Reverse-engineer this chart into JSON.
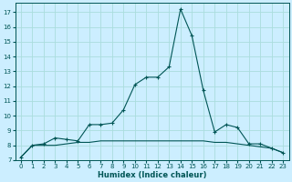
{
  "xlabel": "Humidex (Indice chaleur)",
  "background_color": "#cceeff",
  "grid_color": "#aadddd",
  "line_color": "#005555",
  "xlim": [
    -0.5,
    23.5
  ],
  "ylim": [
    7,
    17.6
  ],
  "yticks": [
    7,
    8,
    9,
    10,
    11,
    12,
    13,
    14,
    15,
    16,
    17
  ],
  "xticks": [
    0,
    1,
    2,
    3,
    4,
    5,
    6,
    7,
    8,
    9,
    10,
    11,
    12,
    13,
    14,
    15,
    16,
    17,
    18,
    19,
    20,
    21,
    22,
    23
  ],
  "line1_x": [
    0,
    1,
    2,
    3,
    4,
    5,
    6,
    7,
    8,
    9,
    10,
    11,
    12,
    13,
    14,
    15,
    16,
    17,
    18,
    19,
    20,
    21,
    22,
    23
  ],
  "line1_y": [
    7.2,
    8.0,
    8.1,
    8.5,
    8.4,
    8.3,
    9.4,
    9.4,
    9.5,
    10.4,
    12.1,
    12.6,
    12.6,
    13.3,
    17.2,
    15.4,
    11.7,
    8.9,
    9.4,
    9.2,
    8.1,
    8.1,
    7.8,
    7.5
  ],
  "line2_x": [
    0,
    1,
    2,
    3,
    4,
    5,
    6,
    7,
    8,
    9,
    10,
    11,
    12,
    13,
    14,
    15,
    16,
    17,
    18,
    19,
    20,
    21,
    22,
    23
  ],
  "line2_y": [
    7.2,
    8.0,
    8.0,
    8.0,
    8.1,
    8.2,
    8.2,
    8.3,
    8.3,
    8.3,
    8.3,
    8.3,
    8.3,
    8.3,
    8.3,
    8.3,
    8.3,
    8.2,
    8.2,
    8.1,
    8.0,
    7.9,
    7.8,
    7.5
  ]
}
